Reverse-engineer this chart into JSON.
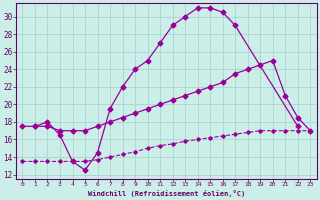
{
  "xlabel": "Windchill (Refroidissement éolien,°C)",
  "background_color": "#cceee8",
  "grid_color": "#aad4ce",
  "line_color": "#990099",
  "spine_color": "#660066",
  "x_ticks": [
    0,
    1,
    2,
    3,
    4,
    5,
    6,
    7,
    8,
    9,
    10,
    11,
    12,
    13,
    14,
    15,
    16,
    17,
    18,
    19,
    20,
    21,
    22,
    23
  ],
  "y_ticks": [
    12,
    14,
    16,
    18,
    20,
    22,
    24,
    26,
    28,
    30
  ],
  "xlim": [
    -0.5,
    23.5
  ],
  "ylim": [
    11.5,
    31.5
  ],
  "curve1_x": [
    1,
    2,
    3,
    4,
    5,
    6,
    7,
    8,
    9,
    10,
    11,
    12,
    13,
    14,
    15,
    16,
    17,
    22
  ],
  "curve1_y": [
    17.5,
    18.0,
    16.5,
    13.5,
    12.5,
    14.5,
    19.5,
    22.0,
    24.0,
    25.0,
    27.0,
    29.0,
    30.0,
    31.0,
    31.0,
    30.5,
    29.0,
    17.5
  ],
  "curve2_x": [
    0,
    1,
    2,
    3,
    4,
    5,
    6,
    7,
    8,
    9,
    10,
    11,
    12,
    13,
    14,
    15,
    16,
    17,
    18,
    19,
    20,
    21,
    22,
    23
  ],
  "curve2_y": [
    17.5,
    17.5,
    17.5,
    17.0,
    17.0,
    17.0,
    17.5,
    18.0,
    18.5,
    19.0,
    19.5,
    20.0,
    20.5,
    21.0,
    21.5,
    22.0,
    22.5,
    23.5,
    24.0,
    24.5,
    25.0,
    21.0,
    18.5,
    17.0
  ],
  "curve3_x": [
    0,
    1,
    2,
    3,
    4,
    5,
    6,
    7,
    8,
    9,
    10,
    11,
    12,
    13,
    14,
    15,
    16,
    17,
    18,
    19,
    20,
    21,
    22,
    23
  ],
  "curve3_y": [
    13.5,
    13.5,
    13.5,
    13.5,
    13.5,
    13.5,
    13.7,
    14.0,
    14.3,
    14.6,
    15.0,
    15.3,
    15.5,
    15.8,
    16.0,
    16.2,
    16.4,
    16.6,
    16.8,
    17.0,
    17.0,
    17.0,
    17.0,
    17.0
  ]
}
